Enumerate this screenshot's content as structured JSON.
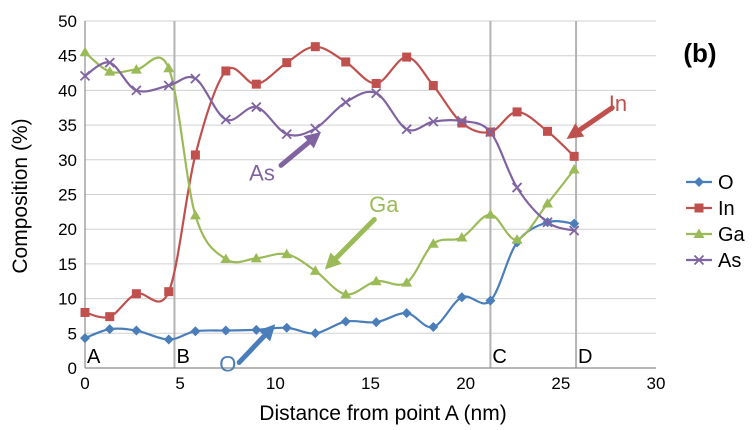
{
  "panel_label": "(b)",
  "chart_data": {
    "type": "line",
    "title": "",
    "xlabel": "Distance from point A (nm)",
    "ylabel": "Composition (%)",
    "xlim": [
      0,
      30
    ],
    "ylim": [
      0,
      50
    ],
    "xticks": [
      "0",
      "5",
      "10",
      "15",
      "20",
      "25",
      "30"
    ],
    "yticks": [
      "0",
      "5",
      "10",
      "15",
      "20",
      "25",
      "30",
      "35",
      "40",
      "45",
      "50"
    ],
    "grid": "horizontal",
    "legend_position": "right",
    "series": [
      {
        "name": "O",
        "color": "#4a7ebb",
        "marker": "diamond",
        "x": [
          0,
          1.3,
          2.7,
          4.4,
          5.8,
          7.4,
          9,
          10.6,
          12.1,
          13.7,
          15.3,
          16.9,
          18.3,
          19.8,
          21.3,
          22.7,
          24.3,
          25.7
        ],
        "y": [
          4.3,
          5.6,
          5.4,
          4.1,
          5.3,
          5.4,
          5.5,
          5.8,
          5,
          6.7,
          6.6,
          7.9,
          5.9,
          10.2,
          9.7,
          18.1,
          21,
          20.8
        ]
      },
      {
        "name": "In",
        "color": "#c0504d",
        "marker": "square",
        "x": [
          0,
          1.3,
          2.7,
          4.4,
          5.8,
          7.4,
          9,
          10.6,
          12.1,
          13.7,
          15.3,
          16.9,
          18.3,
          19.8,
          21.3,
          22.7,
          24.3,
          25.7
        ],
        "y": [
          8,
          7.4,
          10.7,
          11,
          30.7,
          42.8,
          40.9,
          44,
          46.3,
          44.1,
          41,
          44.8,
          40.7,
          35.3,
          34,
          36.9,
          34.1,
          30.5
        ]
      },
      {
        "name": "Ga",
        "color": "#9bbb59",
        "marker": "triangle",
        "x": [
          0,
          1.3,
          2.7,
          4.4,
          5.8,
          7.4,
          9,
          10.6,
          12.1,
          13.7,
          15.3,
          16.9,
          18.3,
          19.8,
          21.3,
          22.7,
          24.3,
          25.7
        ],
        "y": [
          45.5,
          42.7,
          43,
          43.2,
          22,
          15.7,
          15.8,
          16.4,
          14,
          10.6,
          12.5,
          12.3,
          17.9,
          18.8,
          22.1,
          18.5,
          23.7,
          28.6
        ]
      },
      {
        "name": "As",
        "color": "#8064a2",
        "marker": "x",
        "x": [
          0,
          1.3,
          2.7,
          4.4,
          5.8,
          7.4,
          9,
          10.6,
          12.1,
          13.7,
          15.3,
          16.9,
          18.3,
          19.8,
          21.3,
          22.7,
          24.3,
          25.7
        ],
        "y": [
          42.1,
          44,
          40,
          40.7,
          41.7,
          35.8,
          37.6,
          33.7,
          34.5,
          38.3,
          39.6,
          34.4,
          35.5,
          35.6,
          34,
          26,
          21,
          19.8
        ]
      }
    ],
    "vertical_markers": [
      {
        "label": "A",
        "x": 0
      },
      {
        "label": "B",
        "x": 4.7
      },
      {
        "label": "C",
        "x": 21.3
      },
      {
        "label": "D",
        "x": 25.8
      }
    ],
    "annotations": [
      {
        "text": "In",
        "color": "#c0504d",
        "x": 28,
        "y": 37,
        "arrow_from": [
          27.7,
          37.5
        ],
        "arrow_to": [
          25.3,
          33
        ]
      },
      {
        "text": "As",
        "color": "#8064a2",
        "x": 9.3,
        "y": 27,
        "arrow_from": [
          10.3,
          29.2
        ],
        "arrow_to": [
          12.4,
          34
        ]
      },
      {
        "text": "Ga",
        "color": "#9bbb59",
        "x": 15.7,
        "y": 22.5,
        "arrow_from": [
          15.2,
          21.4
        ],
        "arrow_to": [
          12.6,
          14.2
        ]
      },
      {
        "text": "O",
        "color": "#4a7ebb",
        "x": 7.5,
        "y": -0.5,
        "arrow_from": [
          8.1,
          0.8
        ],
        "arrow_to": [
          10,
          6.3
        ]
      }
    ]
  }
}
